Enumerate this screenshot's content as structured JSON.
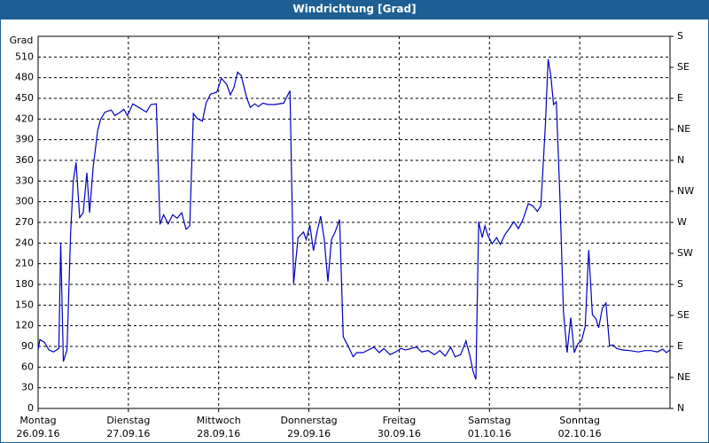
{
  "chart_data": {
    "type": "line",
    "title": "Windrichtung [Grad]",
    "y_label": "Grad",
    "color": "#0000c0",
    "grid": true,
    "xlim": [
      0,
      7
    ],
    "xticks": [
      0,
      1,
      2,
      3,
      4,
      5,
      6
    ],
    "xtick_labels": [
      [
        "Montag",
        "26.09.16"
      ],
      [
        "Dienstag",
        "27.09.16"
      ],
      [
        "Mittwoch",
        "28.09.16"
      ],
      [
        "Donnerstag",
        "29.09.16"
      ],
      [
        "Freitag",
        "30.09.16"
      ],
      [
        "Samstag",
        "01.10.16"
      ],
      [
        "Sonntag",
        "02.10.16"
      ]
    ],
    "ylim": [
      0,
      540
    ],
    "yticks": [
      0,
      30,
      60,
      90,
      120,
      150,
      180,
      210,
      240,
      270,
      300,
      330,
      360,
      390,
      420,
      450,
      480,
      510
    ],
    "y2lim": [
      0,
      540
    ],
    "y2ticks": [
      {
        "value": 0,
        "label": "N"
      },
      {
        "value": 45,
        "label": "NE"
      },
      {
        "value": 90,
        "label": "E"
      },
      {
        "value": 135,
        "label": "SE"
      },
      {
        "value": 180,
        "label": "S"
      },
      {
        "value": 225,
        "label": "SW"
      },
      {
        "value": 270,
        "label": "W"
      },
      {
        "value": 315,
        "label": "NW"
      },
      {
        "value": 360,
        "label": "N"
      },
      {
        "value": 405,
        "label": "NE"
      },
      {
        "value": 450,
        "label": "E"
      },
      {
        "value": 495,
        "label": "SE"
      },
      {
        "value": 540,
        "label": "S"
      }
    ],
    "x": [
      0,
      0.02,
      0.07,
      0.12,
      0.17,
      0.23,
      0.25,
      0.28,
      0.32,
      0.36,
      0.39,
      0.42,
      0.46,
      0.5,
      0.54,
      0.57,
      0.61,
      0.66,
      0.69,
      0.74,
      0.81,
      0.85,
      0.91,
      0.95,
      0.99,
      1.05,
      1.1,
      1.15,
      1.2,
      1.25,
      1.31,
      1.35,
      1.39,
      1.44,
      1.49,
      1.54,
      1.59,
      1.64,
      1.68,
      1.72,
      1.76,
      1.82,
      1.86,
      1.91,
      1.98,
      2.03,
      2.09,
      2.13,
      2.17,
      2.21,
      2.25,
      2.31,
      2.35,
      2.4,
      2.44,
      2.49,
      2.55,
      2.62,
      2.72,
      2.79,
      2.83,
      2.88,
      2.94,
      2.97,
      3.01,
      3.05,
      3.09,
      3.13,
      3.17,
      3.21,
      3.25,
      3.29,
      3.34,
      3.38,
      3.44,
      3.49,
      3.53,
      3.6,
      3.66,
      3.72,
      3.78,
      3.83,
      3.9,
      3.96,
      4.02,
      4.07,
      4.13,
      4.19,
      4.25,
      4.32,
      4.39,
      4.45,
      4.51,
      4.57,
      4.62,
      4.68,
      4.74,
      4.78,
      4.82,
      4.85,
      4.88,
      4.92,
      4.95,
      4.98,
      5.03,
      5.08,
      5.12,
      5.17,
      5.22,
      5.27,
      5.32,
      5.37,
      5.43,
      5.48,
      5.53,
      5.57,
      5.62,
      5.65,
      5.68,
      5.71,
      5.74,
      5.78,
      5.82,
      5.86,
      5.9,
      5.94,
      5.98,
      6.02,
      6.06,
      6.1,
      6.14,
      6.18,
      6.21,
      6.25,
      6.29,
      6.33,
      6.37,
      6.41,
      6.47,
      6.55,
      6.65,
      6.72,
      6.79,
      6.86,
      6.92,
      6.96,
      7.0
    ],
    "values": [
      85,
      100,
      96,
      85,
      82,
      87,
      240,
      68,
      85,
      255,
      330,
      357,
      277,
      284,
      342,
      284,
      350,
      403,
      419,
      430,
      433,
      425,
      430,
      434,
      425,
      442,
      438,
      434,
      430,
      441,
      442,
      267,
      281,
      268,
      281,
      276,
      284,
      260,
      265,
      428,
      421,
      417,
      443,
      456,
      459,
      479,
      470,
      455,
      466,
      488,
      483,
      451,
      437,
      442,
      438,
      443,
      441,
      441,
      443,
      461,
      181,
      248,
      256,
      245,
      266,
      229,
      256,
      279,
      245,
      184,
      245,
      256,
      274,
      104,
      89,
      75,
      81,
      81,
      85,
      89,
      81,
      87,
      78,
      82,
      87,
      85,
      87,
      89,
      82,
      84,
      78,
      84,
      76,
      89,
      75,
      78,
      98,
      78,
      53,
      42,
      271,
      248,
      265,
      252,
      239,
      248,
      238,
      252,
      261,
      271,
      261,
      274,
      297,
      294,
      286,
      294,
      412,
      507,
      483,
      441,
      445,
      310,
      140,
      81,
      132,
      81,
      94,
      98,
      119,
      230,
      136,
      130,
      117,
      145,
      153,
      91,
      92,
      87,
      85,
      84,
      82,
      84,
      84,
      82,
      86,
      81,
      85
    ]
  }
}
